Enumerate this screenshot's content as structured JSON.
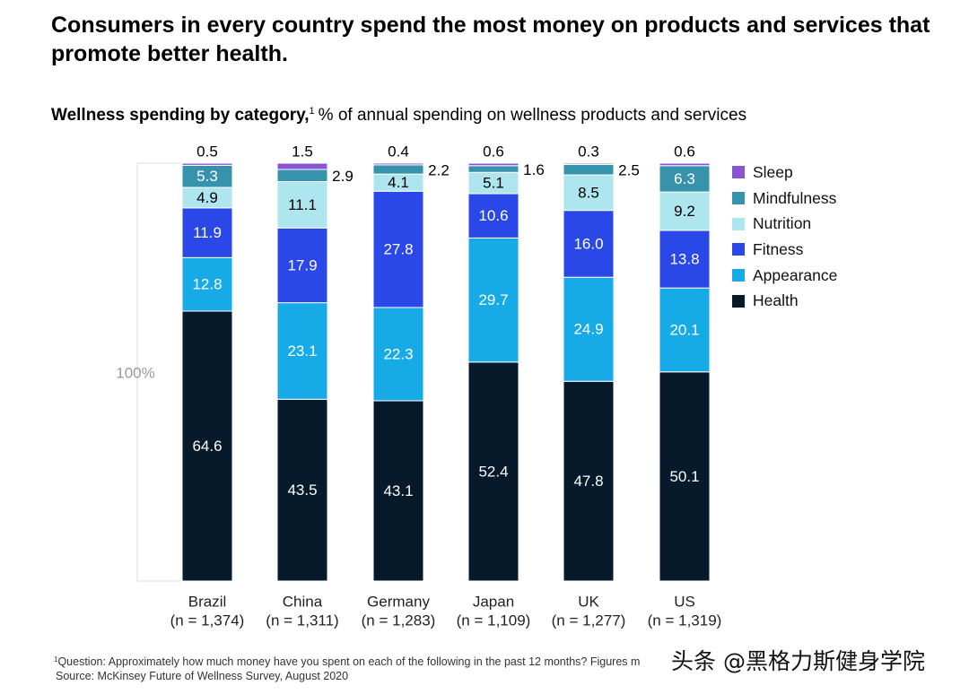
{
  "headline": "Consumers in every country spend the most money on products and services that promote better health.",
  "subtitle": {
    "bold": "Wellness spending by category,",
    "sup": "1",
    "rest": "% of annual spending on wellness products and services"
  },
  "chart_data": {
    "type": "bar",
    "stacked": true,
    "y_total_label": "100%",
    "categories": [
      "Brazil",
      "China",
      "Germany",
      "Japan",
      "UK",
      "US"
    ],
    "category_n": [
      "(n = 1,374)",
      "(n = 1,311)",
      "(n = 1,283)",
      "(n = 1,109)",
      "(n = 1,277)",
      "(n = 1,319)"
    ],
    "series": [
      {
        "name": "Health",
        "color": "#061a2b",
        "values": [
          64.6,
          43.5,
          43.1,
          52.4,
          47.8,
          50.1
        ]
      },
      {
        "name": "Appearance",
        "color": "#16aae6",
        "values": [
          12.8,
          23.1,
          22.3,
          29.7,
          24.9,
          20.1
        ]
      },
      {
        "name": "Fitness",
        "color": "#2a47e8",
        "values": [
          11.9,
          17.9,
          27.8,
          10.6,
          16.0,
          13.8
        ]
      },
      {
        "name": "Nutrition",
        "color": "#aee6f0",
        "values": [
          4.9,
          11.1,
          4.1,
          5.1,
          8.5,
          9.2
        ]
      },
      {
        "name": "Mindfulness",
        "color": "#3792ab",
        "values": [
          5.3,
          2.9,
          2.2,
          1.6,
          2.5,
          6.3
        ]
      },
      {
        "name": "Sleep",
        "color": "#8a55cf",
        "values": [
          0.5,
          1.5,
          0.4,
          0.6,
          0.3,
          0.6
        ]
      }
    ],
    "legend_order": [
      "Sleep",
      "Mindfulness",
      "Nutrition",
      "Fitness",
      "Appearance",
      "Health"
    ],
    "legend_position": "right"
  },
  "footnote": {
    "sup": "1",
    "line1": "Question: Approximately how much money have you spent on each of the following in the past 12 months? Figures m",
    "line2": "Source: McKinsey Future of Wellness Survey, August 2020"
  },
  "watermark": "头条 @黑格力斯健身学院"
}
